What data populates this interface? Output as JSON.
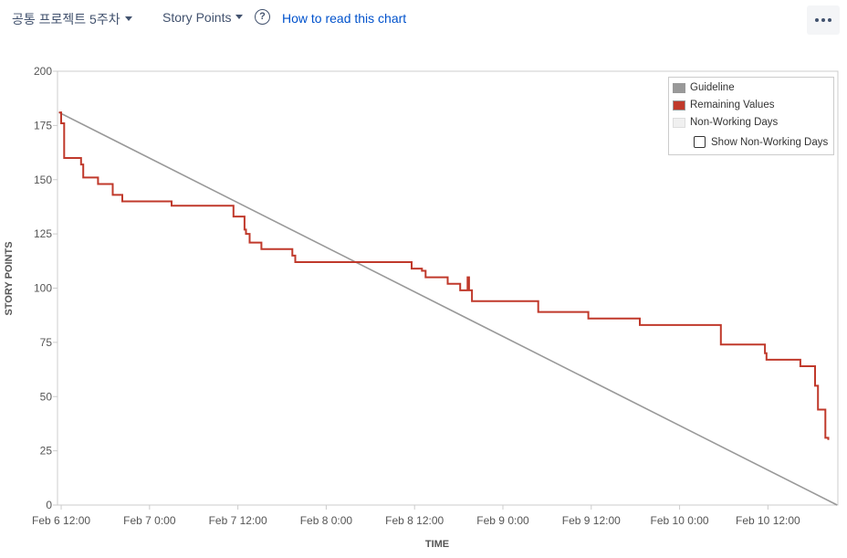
{
  "toolbar": {
    "sprint_select": "공통 프로젝트 5주차",
    "estimate_select": "Story Points",
    "help_link": "How to read this chart",
    "help_icon": "question-circle-icon",
    "more_icon": "more-icon"
  },
  "legend": {
    "guideline": "Guideline",
    "remaining": "Remaining Values",
    "non_working": "Non-Working Days",
    "show_non_working": "Show Non-Working Days"
  },
  "colors": {
    "guideline": "#999999",
    "remaining": "#c0392b",
    "non_working": "#f0f0f0",
    "link": "#0052cc"
  },
  "chart_data": {
    "type": "line",
    "title": "",
    "xlabel": "TIME",
    "ylabel": "STORY POINTS",
    "x_unit": "hours since Feb 6 12:00",
    "xlim": [
      -0.5,
      105.5
    ],
    "ylim": [
      0,
      200
    ],
    "x_ticks": [
      {
        "x": 0,
        "label": "Feb 6 12:00"
      },
      {
        "x": 12,
        "label": "Feb 7 0:00"
      },
      {
        "x": 24,
        "label": "Feb 7 12:00"
      },
      {
        "x": 36,
        "label": "Feb 8 0:00"
      },
      {
        "x": 48,
        "label": "Feb 8 12:00"
      },
      {
        "x": 60,
        "label": "Feb 9 0:00"
      },
      {
        "x": 72,
        "label": "Feb 9 12:00"
      },
      {
        "x": 84,
        "label": "Feb 10 0:00"
      },
      {
        "x": 96,
        "label": "Feb 10 12:00"
      }
    ],
    "y_ticks": [
      0,
      25,
      50,
      75,
      100,
      125,
      150,
      175,
      200
    ],
    "grid": false,
    "legend_position": "top-right",
    "series": [
      {
        "name": "Guideline",
        "style": "line",
        "points": [
          [
            -0.3,
            181
          ],
          [
            105.4,
            0
          ]
        ]
      },
      {
        "name": "Remaining Values",
        "style": "step",
        "points": [
          [
            -0.3,
            181
          ],
          [
            0.0,
            176
          ],
          [
            0.4,
            160
          ],
          [
            2.7,
            157
          ],
          [
            3.0,
            151
          ],
          [
            5.0,
            148
          ],
          [
            7.0,
            143
          ],
          [
            8.3,
            140
          ],
          [
            15.0,
            138
          ],
          [
            23.4,
            133
          ],
          [
            24.9,
            127
          ],
          [
            25.1,
            125
          ],
          [
            25.6,
            121
          ],
          [
            27.2,
            118
          ],
          [
            31.4,
            115
          ],
          [
            31.8,
            112
          ],
          [
            47.6,
            109
          ],
          [
            49.0,
            108
          ],
          [
            49.5,
            105
          ],
          [
            52.5,
            102
          ],
          [
            54.2,
            99
          ],
          [
            55.2,
            105
          ],
          [
            55.4,
            99
          ],
          [
            55.8,
            94
          ],
          [
            64.8,
            89
          ],
          [
            71.6,
            86
          ],
          [
            78.6,
            83
          ],
          [
            89.6,
            74
          ],
          [
            95.6,
            70
          ],
          [
            95.8,
            67
          ],
          [
            100.4,
            64
          ],
          [
            102.4,
            55
          ],
          [
            102.8,
            44
          ],
          [
            103.8,
            31
          ],
          [
            104.2,
            30
          ]
        ]
      }
    ]
  }
}
